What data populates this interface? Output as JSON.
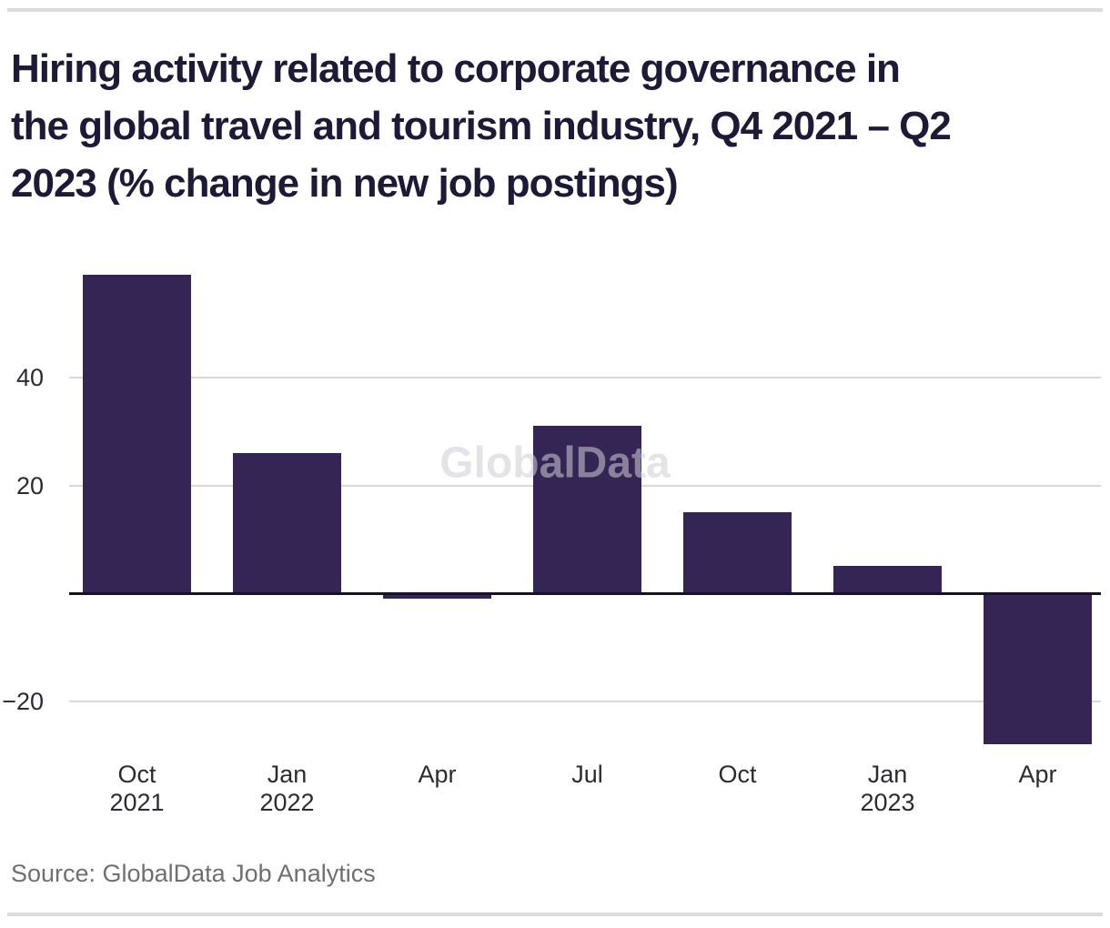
{
  "header": {
    "lines": [
      "Hiring activity related to corporate governance in",
      "the global travel and tourism industry, Q4 2021 – Q2",
      "2023 (% change in new job postings)"
    ]
  },
  "watermark": "GlobalData",
  "source": "Source: GlobalData Job Analytics",
  "colors": {
    "bar": "#342554",
    "axis_line": "#15112f",
    "gridline": "#d9d9d9",
    "divider": "#dcdcdc",
    "title_text": "#1d1a38",
    "tick_text": "#2b2b33",
    "source_text": "#6f6f6f",
    "watermark_text": "#cfcfd6"
  },
  "chart_data": {
    "type": "bar",
    "title": "Hiring activity related to corporate governance in the global travel and tourism industry, Q4 2021 – Q2 2023 (% change in new job postings)",
    "categories": [
      "Oct 2021",
      "Jan 2022",
      "Apr",
      "Jul",
      "Oct",
      "Jan 2023",
      "Apr"
    ],
    "xtick_lines": [
      [
        "Oct",
        "2021"
      ],
      [
        "Jan",
        "2022"
      ],
      [
        "Apr"
      ],
      [
        "Jul"
      ],
      [
        "Oct"
      ],
      [
        "Jan",
        "2023"
      ],
      [
        "Apr"
      ]
    ],
    "values": [
      59,
      26,
      -1,
      31,
      15,
      5,
      -28
    ],
    "ylabel": "% change in new job postings",
    "yticks": [
      40,
      20,
      -20
    ],
    "ylim": [
      -30,
      62
    ],
    "grid": true,
    "legend": "none",
    "watermark": "GlobalData",
    "source": "Source: GlobalData Job Analytics"
  }
}
